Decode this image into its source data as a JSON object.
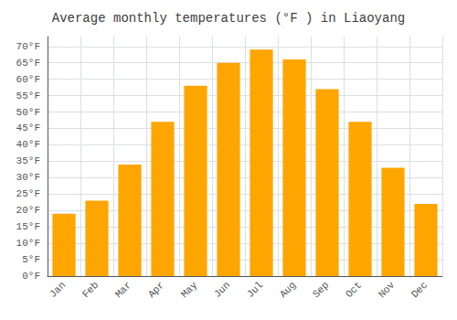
{
  "chart_data": {
    "type": "bar",
    "title": "Average monthly temperatures (°F ) in Liaoyang",
    "categories": [
      "Jan",
      "Feb",
      "Mar",
      "Apr",
      "May",
      "Jun",
      "Jul",
      "Aug",
      "Sep",
      "Oct",
      "Nov",
      "Dec"
    ],
    "values": [
      19,
      23,
      34,
      47,
      58,
      65,
      69,
      66,
      57,
      47,
      33,
      22
    ],
    "color": "#FFA500",
    "ylim": [
      0,
      73
    ],
    "yticks": [
      {
        "value": 0,
        "label": "0°F"
      },
      {
        "value": 5,
        "label": "5°F"
      },
      {
        "value": 10,
        "label": "10°F"
      },
      {
        "value": 15,
        "label": "15°F"
      },
      {
        "value": 20,
        "label": "20°F"
      },
      {
        "value": 25,
        "label": "25°F"
      },
      {
        "value": 30,
        "label": "30°F"
      },
      {
        "value": 35,
        "label": "35°F"
      },
      {
        "value": 40,
        "label": "40°F"
      },
      {
        "value": 45,
        "label": "45°F"
      },
      {
        "value": 50,
        "label": "50°F"
      },
      {
        "value": 55,
        "label": "55°F"
      },
      {
        "value": 60,
        "label": "60°F"
      },
      {
        "value": 65,
        "label": "65°F"
      },
      {
        "value": 70,
        "label": "70°F"
      }
    ],
    "grid": true
  }
}
